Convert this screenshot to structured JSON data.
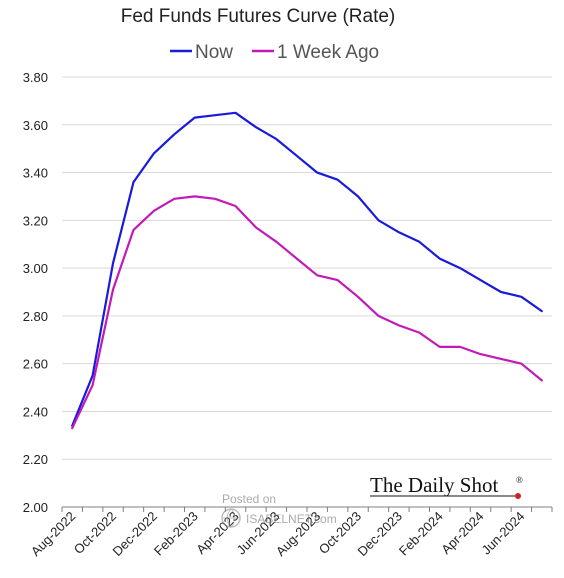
{
  "chart_data": {
    "type": "line",
    "title": "Fed Funds Futures Curve (Rate)",
    "xlabel": "",
    "ylabel": "",
    "ylim": [
      2.0,
      3.8
    ],
    "yticks": [
      2.0,
      2.2,
      2.4,
      2.6,
      2.8,
      3.0,
      3.2,
      3.4,
      3.6,
      3.8
    ],
    "ytick_labels": [
      "2.00",
      "2.20",
      "2.40",
      "2.60",
      "2.80",
      "3.00",
      "3.20",
      "3.40",
      "3.60",
      "3.80"
    ],
    "grid": true,
    "legend_position": "top-center",
    "x": [
      "Aug-2022",
      "Sep-2022",
      "Oct-2022",
      "Nov-2022",
      "Dec-2022",
      "Jan-2023",
      "Feb-2023",
      "Mar-2023",
      "Apr-2023",
      "May-2023",
      "Jun-2023",
      "Jul-2023",
      "Aug-2023",
      "Sep-2023",
      "Oct-2023",
      "Nov-2023",
      "Dec-2023",
      "Jan-2024",
      "Feb-2024",
      "Mar-2024",
      "Apr-2024",
      "May-2024",
      "Jun-2024",
      "Jul-2024"
    ],
    "x_tick_labels": [
      "Aug-2022",
      "Oct-2022",
      "Dec-2022",
      "Feb-2023",
      "Apr-2023",
      "Jun-2023",
      "Aug-2023",
      "Oct-2023",
      "Dec-2023",
      "Feb-2024",
      "Apr-2024",
      "Jun-2024"
    ],
    "series": [
      {
        "name": "Now",
        "color": "#1a1adb",
        "values": [
          2.34,
          2.55,
          3.02,
          3.36,
          3.48,
          3.56,
          3.63,
          3.64,
          3.65,
          3.59,
          3.54,
          3.47,
          3.4,
          3.37,
          3.3,
          3.2,
          3.15,
          3.11,
          3.04,
          3.0,
          2.95,
          2.9,
          2.88,
          2.82
        ]
      },
      {
        "name": "1 Week Ago",
        "color": "#c21ab8",
        "values": [
          2.33,
          2.51,
          2.91,
          3.16,
          3.24,
          3.29,
          3.3,
          3.29,
          3.26,
          3.17,
          3.11,
          3.04,
          2.97,
          2.95,
          2.88,
          2.8,
          2.76,
          2.73,
          2.67,
          2.67,
          2.64,
          2.62,
          2.6,
          2.53
        ]
      }
    ]
  },
  "watermark": {
    "posted_on": "Posted on",
    "site": "ISABELNET.com"
  },
  "brand": {
    "logo_text": "The Daily Shot",
    "logo_mark": "®",
    "dot_color": "#d42020"
  }
}
